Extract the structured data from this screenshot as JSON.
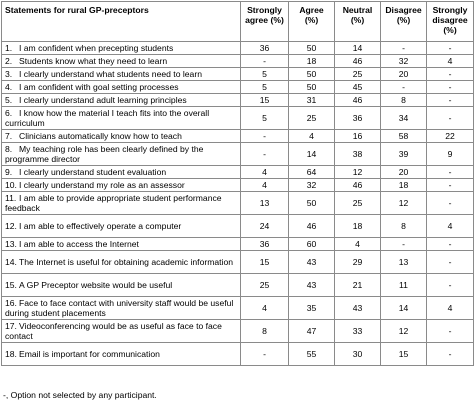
{
  "table": {
    "headers": {
      "statement": "Statements for rural GP-preceptors",
      "strongly_agree": "Strongly agree (%)",
      "agree": "Agree (%)",
      "neutral": "Neutral (%)",
      "disagree": "Disagree (%)",
      "strongly_disagree": "Strongly disagree (%)"
    },
    "rows": [
      {
        "n": "1.",
        "text": "I am confident when precepting students",
        "sa": "36",
        "a": "50",
        "ne": "14",
        "d": "-",
        "sd": "-",
        "lines": 1
      },
      {
        "n": "2.",
        "text": "Students know what they need to learn",
        "sa": "-",
        "a": "18",
        "ne": "46",
        "d": "32",
        "sd": "4",
        "lines": 1
      },
      {
        "n": "3.",
        "text": "I clearly understand what students need to learn",
        "sa": "5",
        "a": "50",
        "ne": "25",
        "d": "20",
        "sd": "-",
        "lines": 1
      },
      {
        "n": "4.",
        "text": "I am confident with goal setting processes",
        "sa": "5",
        "a": "50",
        "ne": "45",
        "d": "-",
        "sd": "-",
        "lines": 1
      },
      {
        "n": "5.",
        "text": "I clearly understand adult learning principles",
        "sa": "15",
        "a": "31",
        "ne": "46",
        "d": "8",
        "sd": "-",
        "lines": 1
      },
      {
        "n": "6.",
        "text": "I know how the material I teach fits into the overall curriculum",
        "sa": "5",
        "a": "25",
        "ne": "36",
        "d": "34",
        "sd": "-",
        "lines": 2
      },
      {
        "n": "7.",
        "text": "Clinicians automatically know how to teach",
        "sa": "-",
        "a": "4",
        "ne": "16",
        "d": "58",
        "sd": "22",
        "lines": 1
      },
      {
        "n": "8.",
        "text": "My teaching role has been clearly defined by the programme director",
        "sa": "-",
        "a": "14",
        "ne": "38",
        "d": "39",
        "sd": "9",
        "lines": 2
      },
      {
        "n": "9.",
        "text": "I clearly understand student evaluation",
        "sa": "4",
        "a": "64",
        "ne": "12",
        "d": "20",
        "sd": "-",
        "lines": 1
      },
      {
        "n": "10.",
        "text": "I clearly understand my role as an assessor",
        "sa": "4",
        "a": "32",
        "ne": "46",
        "d": "18",
        "sd": "-",
        "lines": 1
      },
      {
        "n": "11.",
        "text": "I am able to provide appropriate student performance feedback",
        "sa": "13",
        "a": "50",
        "ne": "25",
        "d": "12",
        "sd": "-",
        "lines": 2
      },
      {
        "n": "12.",
        "text": "I am able to effectively operate a computer",
        "sa": "24",
        "a": "46",
        "ne": "18",
        "d": "8",
        "sd": "4",
        "lines": 2
      },
      {
        "n": "13.",
        "text": "I am able to access the Internet",
        "sa": "36",
        "a": "60",
        "ne": "4",
        "d": "-",
        "sd": "-",
        "lines": 1
      },
      {
        "n": "14.",
        "text": "The Internet is useful for obtaining academic information",
        "sa": "15",
        "a": "43",
        "ne": "29",
        "d": "13",
        "sd": "-",
        "lines": 2
      },
      {
        "n": "15.",
        "text": "A GP Preceptor website would be useful",
        "sa": "25",
        "a": "43",
        "ne": "21",
        "d": "11",
        "sd": "-",
        "lines": 2
      },
      {
        "n": "16.",
        "text": "Face to face contact with university staff would be useful during student placements",
        "sa": "4",
        "a": "35",
        "ne": "43",
        "d": "14",
        "sd": "4",
        "lines": 2
      },
      {
        "n": "17.",
        "text": "Videoconferencing would be as useful as face to face contact",
        "sa": "8",
        "a": "47",
        "ne": "33",
        "d": "12",
        "sd": "-",
        "lines": 2
      },
      {
        "n": "18.",
        "text": "Email is important for communication",
        "sa": "-",
        "a": "55",
        "ne": "30",
        "d": "15",
        "sd": "-",
        "lines": 2
      }
    ]
  },
  "footnote": "-, Option not selected by any participant."
}
